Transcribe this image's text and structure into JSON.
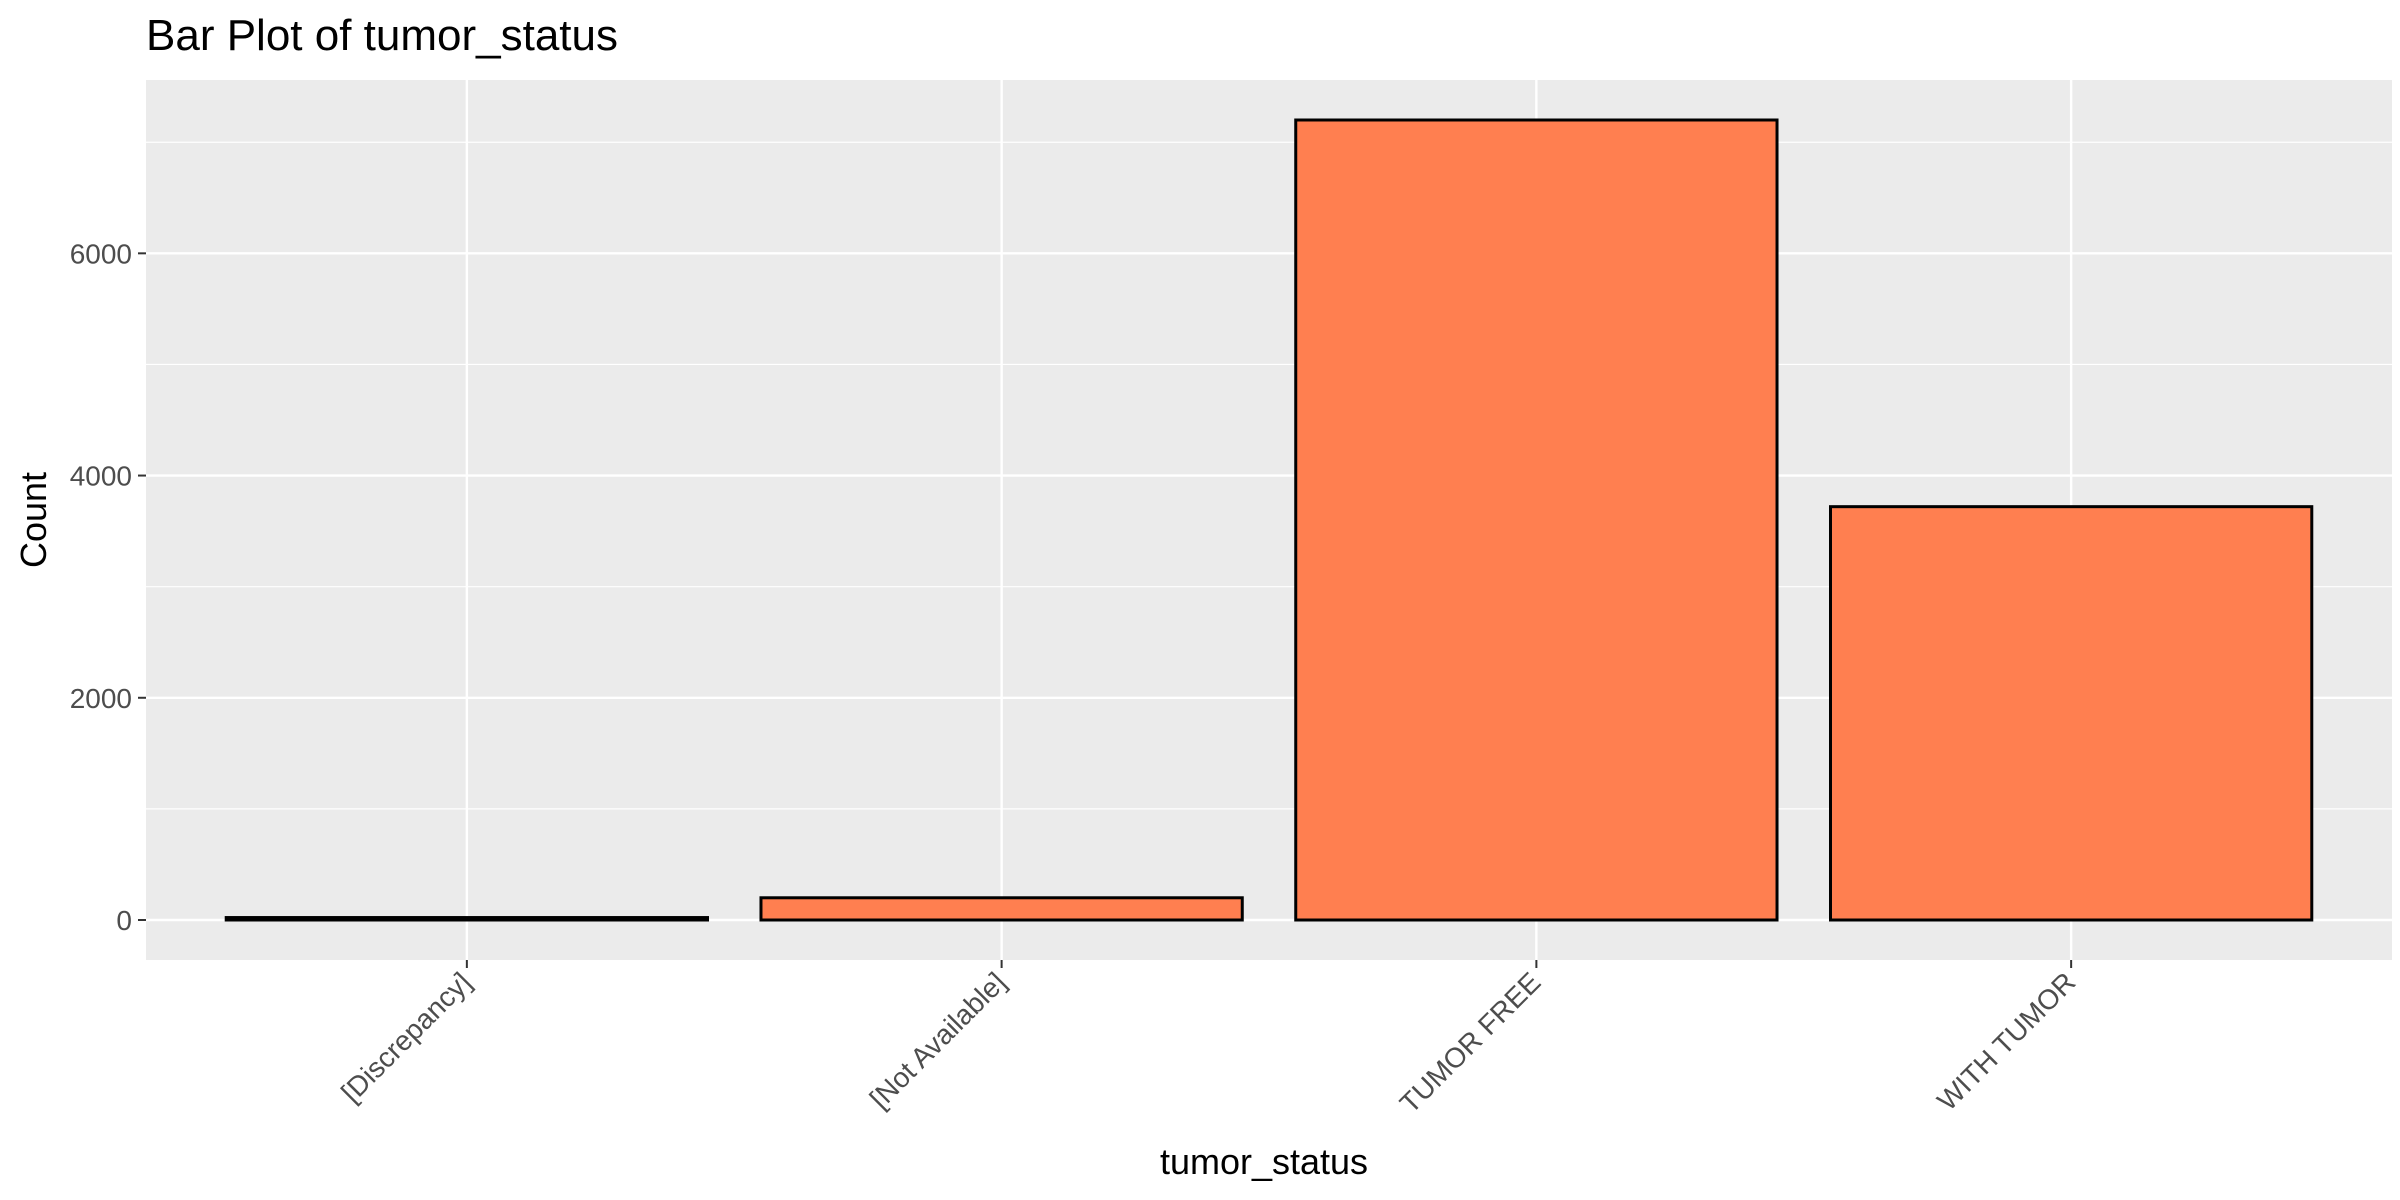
{
  "chart_data": {
    "type": "bar",
    "title": "Bar Plot of tumor_status",
    "xlabel": "tumor_status",
    "ylabel": "Count",
    "categories": [
      "[Discrepancy]",
      "[Not Available]",
      "TUMOR FREE",
      "WITH TUMOR"
    ],
    "values": [
      22,
      200,
      7200,
      3720
    ],
    "ylim": [
      -360,
      7560
    ],
    "yticks": [
      0,
      2000,
      4000,
      6000
    ],
    "ytick_labels": [
      "0",
      "2000",
      "4000",
      "6000"
    ],
    "grid": true,
    "legend": "none",
    "colors": {
      "bar_fill": "#FF7F50",
      "bar_stroke": "#000000",
      "panel_background": "#EBEBEB",
      "grid": "#FFFFFF"
    }
  }
}
